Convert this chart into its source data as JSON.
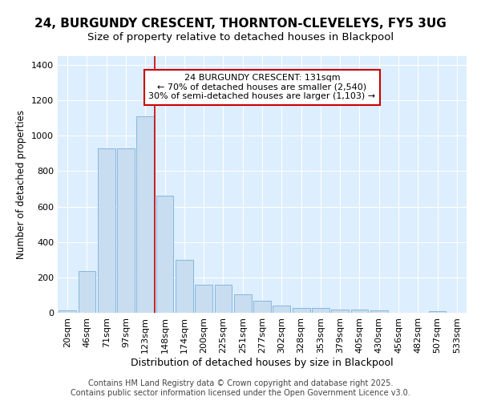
{
  "title_line1": "24, BURGUNDY CRESCENT, THORNTON-CLEVELEYS, FY5 3UG",
  "title_line2": "Size of property relative to detached houses in Blackpool",
  "xlabel": "Distribution of detached houses by size in Blackpool",
  "ylabel": "Number of detached properties",
  "bar_color": "#c8ddf0",
  "bar_edge_color": "#7ab0d8",
  "background_color": "#ddeeff",
  "fig_background": "#ffffff",
  "grid_color": "#ffffff",
  "categories": [
    "20sqm",
    "46sqm",
    "71sqm",
    "97sqm",
    "123sqm",
    "148sqm",
    "174sqm",
    "200sqm",
    "225sqm",
    "251sqm",
    "277sqm",
    "302sqm",
    "328sqm",
    "353sqm",
    "379sqm",
    "405sqm",
    "430sqm",
    "456sqm",
    "482sqm",
    "507sqm",
    "533sqm"
  ],
  "values": [
    15,
    235,
    930,
    930,
    1110,
    660,
    300,
    160,
    160,
    105,
    70,
    40,
    25,
    25,
    20,
    20,
    15,
    0,
    0,
    10,
    0
  ],
  "vline_x": 4.5,
  "vline_color": "#cc0000",
  "vline_linewidth": 1.2,
  "annotation_text": "24 BURGUNDY CRESCENT: 131sqm\n← 70% of detached houses are smaller (2,540)\n30% of semi-detached houses are larger (1,103) →",
  "annotation_box_color": "#ffffff",
  "annotation_box_edge": "#cc0000",
  "annotation_fontsize": 8,
  "ylim": [
    0,
    1450
  ],
  "yticks": [
    0,
    200,
    400,
    600,
    800,
    1000,
    1200,
    1400
  ],
  "title_fontsize": 11,
  "subtitle_fontsize": 9.5,
  "xlabel_fontsize": 9,
  "ylabel_fontsize": 8.5,
  "tick_fontsize": 8,
  "footer_text": "Contains HM Land Registry data © Crown copyright and database right 2025.\nContains public sector information licensed under the Open Government Licence v3.0.",
  "footer_fontsize": 7
}
